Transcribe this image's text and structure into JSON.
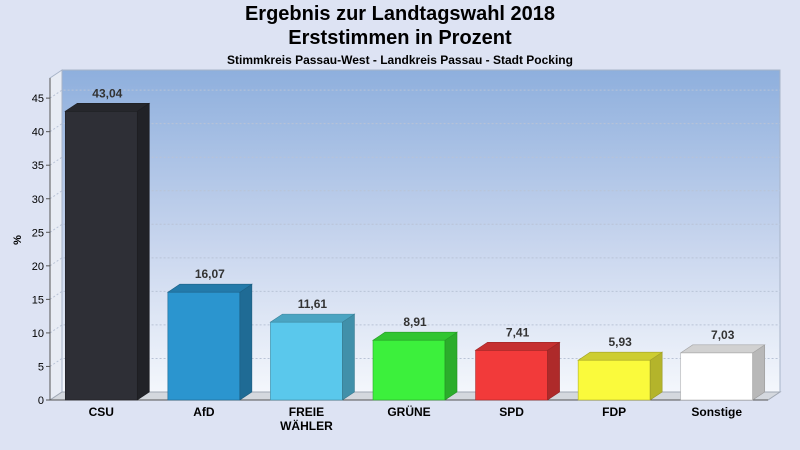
{
  "title": "Ergebnis zur Landtagswahl 2018",
  "subtitle": "Erststimmen in Prozent",
  "subtitle2": "Stimmkreis Passau-West - Landkreis Passau - Stadt Pocking",
  "chart_data": {
    "type": "bar",
    "title": "Ergebnis zur Landtagswahl 2018",
    "subtitle": "Erststimmen in Prozent",
    "ylabel": "%",
    "xlabel": "",
    "ylim": [
      0,
      48
    ],
    "yticks": [
      0,
      5,
      10,
      15,
      20,
      25,
      30,
      35,
      40,
      45
    ],
    "grid": true,
    "legend": "none",
    "categories": [
      "CSU",
      "AfD",
      "FREIE WÄHLER",
      "GRÜNE",
      "SPD",
      "FDP",
      "Sonstige"
    ],
    "category_lines": [
      [
        "CSU"
      ],
      [
        "AfD"
      ],
      [
        "FREIE",
        "WÄHLER"
      ],
      [
        "GRÜNE"
      ],
      [
        "SPD"
      ],
      [
        "FDP"
      ],
      [
        "Sonstige"
      ]
    ],
    "values": [
      43.04,
      16.07,
      11.61,
      8.91,
      7.41,
      5.93,
      7.03
    ],
    "value_labels": [
      "43,04",
      "16,07",
      "11,61",
      "8,91",
      "7,41",
      "5,93",
      "7,03"
    ],
    "colors": [
      "#2e2f36",
      "#2b95cf",
      "#5ac8ec",
      "#3cf03c",
      "#f23a3a",
      "#fafa3c",
      "#ffffff"
    ]
  }
}
